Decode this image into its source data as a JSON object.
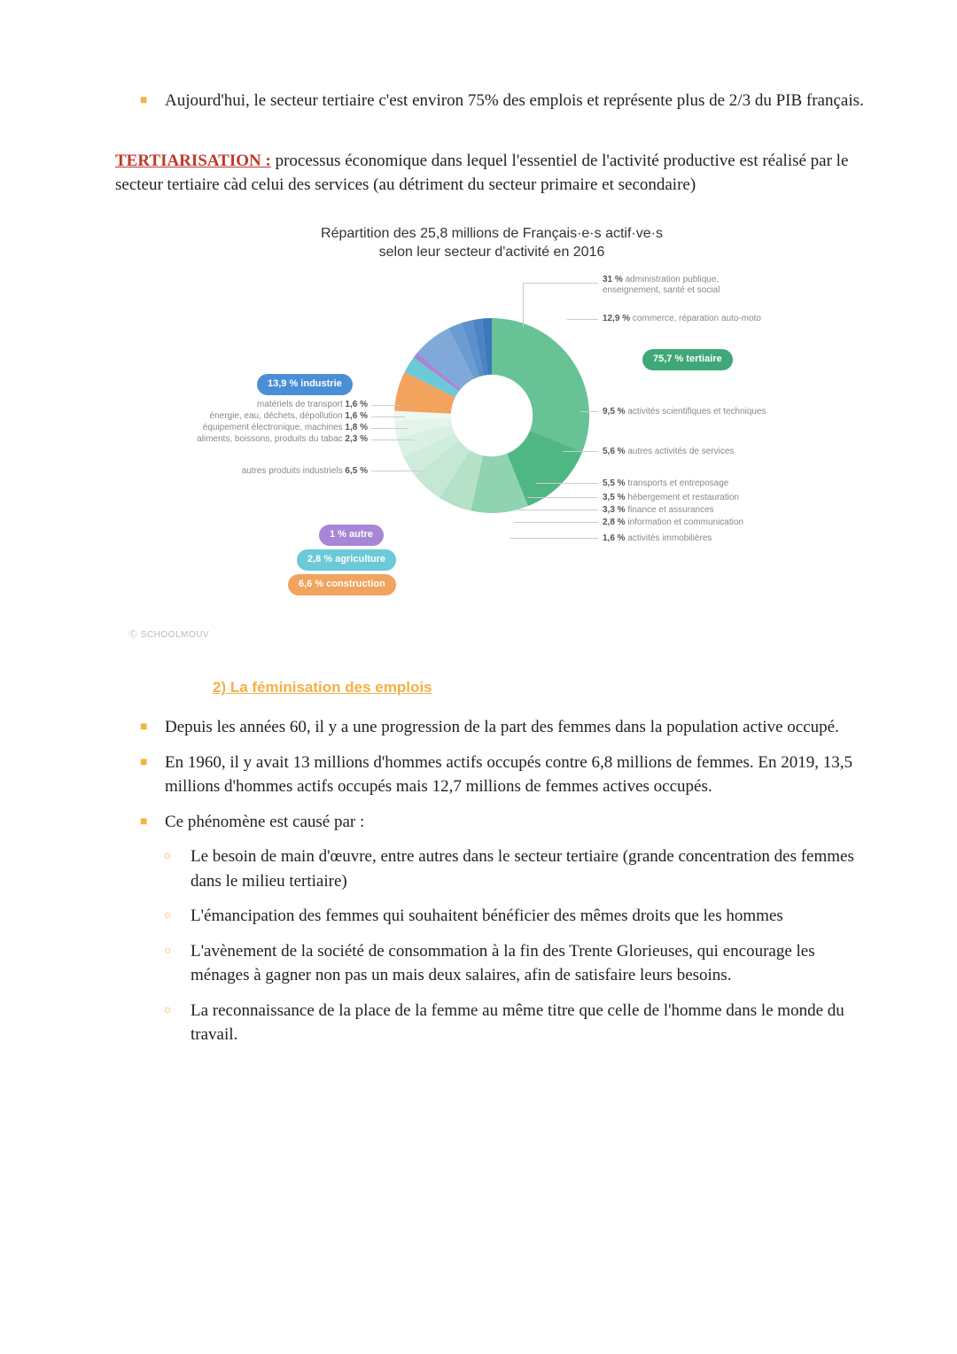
{
  "intro_bullet": "Aujourd'hui, le secteur tertiaire c'est environ 75% des emplois et représente plus de 2/3 du PIB français.",
  "term": {
    "label": "TERTIARISATION :",
    "definition": " processus économique dans lequel l'essentiel de l'activité productive est réalisé par le secteur tertiaire càd celui des services (au détriment du secteur primaire et secondaire)"
  },
  "chart": {
    "title_line1": "Répartition  des 25,8 millions  de Français·e·s actif·ve·s",
    "title_line2": "selon  leur  secteur d'activité en 2016",
    "type": "donut",
    "inner_radius_ratio": 0.42,
    "background_color": "#ffffff",
    "copyright": "Ⓒ SCHOOLMOUV",
    "groups": {
      "tertiaire": {
        "pill_label": "75,7 % tertiaire",
        "pill_color": "#3fa878"
      },
      "industrie": {
        "pill_label": "13,9 % industrie",
        "pill_color": "#4a8fd6"
      },
      "autre": {
        "pill_label": "1  % autre",
        "pill_color": "#a786d6"
      },
      "agriculture": {
        "pill_label": "2,8  % agriculture",
        "pill_color": "#6bc9d8"
      },
      "construction": {
        "pill_label": "6,6  % construction",
        "pill_color": "#f2a35e"
      }
    },
    "segments": [
      {
        "value": 31.0,
        "color": "#67c295",
        "label_pct": "31 %",
        "label_text": "administration publique,\nenseignement, santé et social"
      },
      {
        "value": 12.9,
        "color": "#4fb784",
        "label_pct": "12,9 %",
        "label_text": "commerce, réparation auto-moto"
      },
      {
        "value": 9.5,
        "color": "#8fd3b0",
        "label_pct": "9,5 %",
        "label_text": "activités scientifiques et techniques"
      },
      {
        "value": 5.6,
        "color": "#b5e1c8",
        "label_pct": "5,6 %",
        "label_text": "autres activités de services"
      },
      {
        "value": 5.5,
        "color": "#c5e8d4",
        "label_pct": "5,5 %",
        "label_text": "transports et entreposage"
      },
      {
        "value": 3.5,
        "color": "#d0ecdc",
        "label_pct": "3,5 %",
        "label_text": "hébergement et restauration"
      },
      {
        "value": 3.3,
        "color": "#daf0e3",
        "label_pct": "3,3 %",
        "label_text": "finance et assurances"
      },
      {
        "value": 2.8,
        "color": "#e3f4ea",
        "label_pct": "2,8 %",
        "label_text": "information et communication"
      },
      {
        "value": 1.6,
        "color": "#ecf8f1",
        "label_pct": "1,6 %",
        "label_text": "activités immobilières"
      },
      {
        "value": 6.6,
        "color": "#f2a35e"
      },
      {
        "value": 2.8,
        "color": "#6bc9d8"
      },
      {
        "value": 1.0,
        "color": "#a786d6"
      },
      {
        "value": 6.5,
        "color": "#7ea9d8",
        "label_pct": "6,5 %",
        "label_text": "autres produits industriels",
        "side": "left"
      },
      {
        "value": 2.3,
        "color": "#6a9cd1",
        "label_pct": "2,3 %",
        "label_text": "aliments, boissons, produits du tabac",
        "side": "left"
      },
      {
        "value": 1.8,
        "color": "#5b90ca",
        "label_pct": "1,8 %",
        "label_text": "équipement électronique, machines",
        "side": "left"
      },
      {
        "value": 1.6,
        "color": "#4c84c3",
        "label_pct": "1,6 %",
        "label_text": "énergie, eau, déchets, dépollution",
        "side": "left"
      },
      {
        "value": 1.6,
        "color": "#3d78bc",
        "label_pct": "1,6 %",
        "label_text": "matériels de transport",
        "side": "left"
      }
    ]
  },
  "section2": {
    "heading": "2) La féminisation des emplois",
    "bullets": [
      "Depuis les années 60, il y a une progression de la part des femmes dans la population active occupé.",
      "En 1960, il y avait 13 millions d'hommes actifs occupés contre 6,8 millions de femmes. En 2019, 13,5 millions d'hommes actifs occupés mais 12,7 millions de femmes actives occupés.",
      "Ce phénomène est causé par :"
    ],
    "sub_bullets": [
      "Le besoin de main d'œuvre, entre autres dans le secteur tertiaire (grande concentration des femmes dans le milieu tertiaire)",
      "L'émancipation des femmes qui souhaitent bénéficier des mêmes droits que les hommes",
      "L'avènement de la société de consommation à la fin des Trente Glorieuses, qui encourage les ménages à gagner non pas un mais deux salaires, afin de satisfaire leurs besoins.",
      "La reconnaissance de la place de la femme au même titre que celle de l'homme dans le monde du travail."
    ]
  }
}
